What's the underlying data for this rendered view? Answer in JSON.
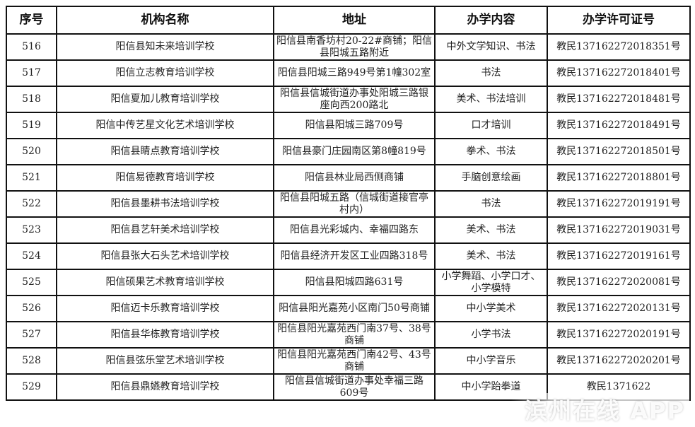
{
  "headers": [
    "序号",
    "机构名称",
    "地址",
    "办学内容",
    "办学许可证号"
  ],
  "rows": [
    {
      "no": "516",
      "name": "阳信县知未来培训学校",
      "address": "阳信县南香坊村20-22#商铺；阳信县阳城五路附近",
      "content": "中外文学知识、书法",
      "license": "教民137162272018351号"
    },
    {
      "no": "517",
      "name": "阳信立志教育培训学校",
      "address": "阳信县阳城三路949号第1幢302室",
      "content": "书法",
      "license": "教民137162272018401号"
    },
    {
      "no": "518",
      "name": "阳信夏加儿教育培训学校",
      "address": "阳信县信城街道办事处阳城三路银座向西200路北",
      "content": "美术、书法培训",
      "license": "教民137162272018481号"
    },
    {
      "no": "519",
      "name": "阳信中传艺星文化艺术培训学校",
      "address": "阳信县阳城三路709号",
      "content": "口才培训",
      "license": "教民137162272018491号"
    },
    {
      "no": "520",
      "name": "阳信县睛点教育培训学校",
      "address": "阳信县豪门庄园南区第8幢819号",
      "content": "拳术、书法",
      "license": "教民137162272018501号"
    },
    {
      "no": "521",
      "name": "阳信易德教育培训学校",
      "address": "阳信县林业局西侧商铺",
      "content": "手脑创意绘画",
      "license": "教民137162272018801号"
    },
    {
      "no": "522",
      "name": "阳信县墨耕书法培训学校",
      "address": "阳信县阳城五路（信城街道接官亭村内）",
      "content": "书法",
      "license": "教民137162272019191号"
    },
    {
      "no": "523",
      "name": "阳信县艺轩美术培训学校",
      "address": "阳信县光彩城内、幸福四路东",
      "content": "美术、书法",
      "license": "教民137162272019031号"
    },
    {
      "no": "524",
      "name": "阳信县张大石头艺术培训学校",
      "address": "阳信县经济开发区工业四路318号",
      "content": "美术、书法",
      "license": "教民137162272019161号"
    },
    {
      "no": "525",
      "name": "阳信硕果艺术教育培训学校",
      "address": "阳信县阳城四路631号",
      "content": "小学舞蹈、小学口才、小学模特",
      "license": "教民137162272020081号"
    },
    {
      "no": "526",
      "name": "阳信迈卡乐教育培训学校",
      "address": "阳信县阳光嘉苑小区南门50号商铺",
      "content": "中小学美术",
      "license": "教民137162272020131号"
    },
    {
      "no": "527",
      "name": "阳信县华栋教育培训学校",
      "address": "阳信县阳光嘉苑西门南37号、38号商铺",
      "content": "小学书法",
      "license": "教民137162272020191号"
    },
    {
      "no": "528",
      "name": "阳信县弦乐堂艺术培训学校",
      "address": "阳信县阳光嘉苑西门南42号、43号商铺",
      "content": "中小学音乐",
      "license": "教民137162272020201号"
    },
    {
      "no": "529",
      "name": "阳信县鼎嬿教育培训学校",
      "address": "阳信县信城街道办事处幸福三路609号",
      "content": "中小学跆拳道",
      "license": "教民1371622"
    }
  ],
  "watermark": "滨州在线 APP"
}
